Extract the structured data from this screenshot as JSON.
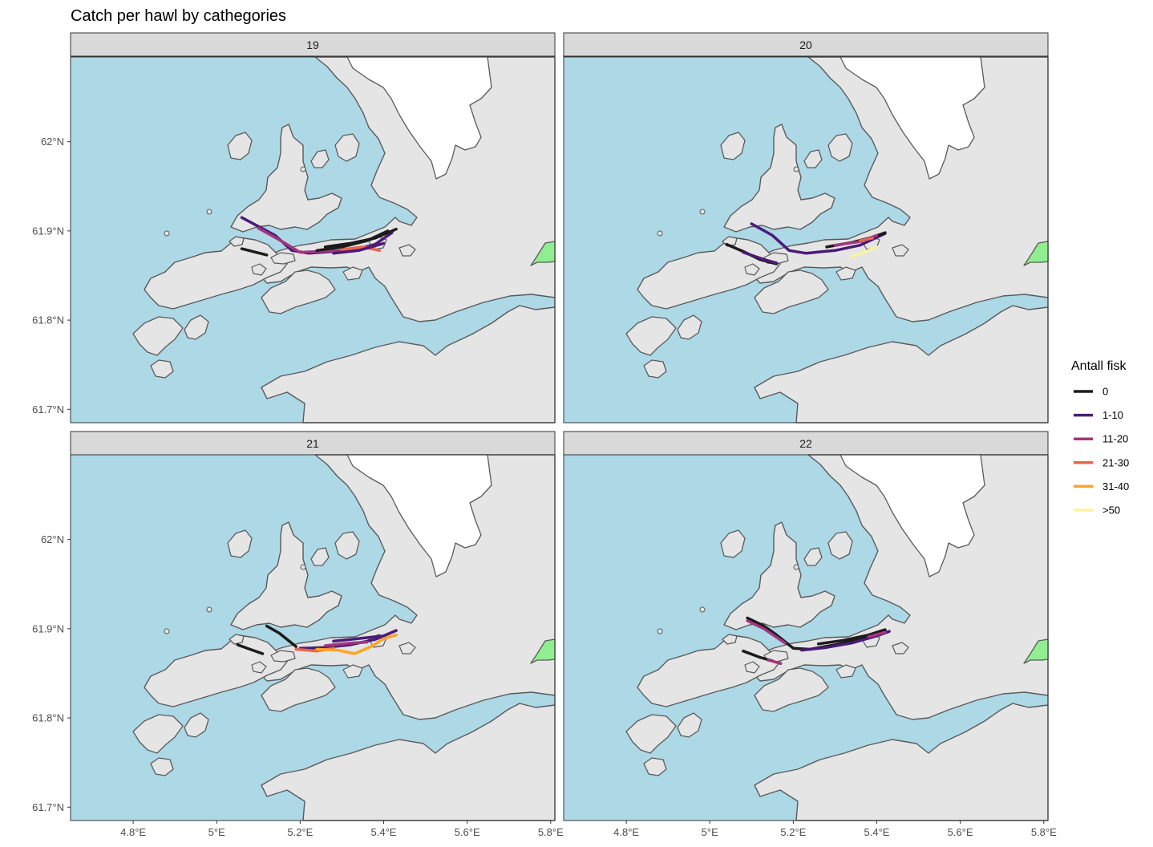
{
  "title": "Catch per hawl by cathegories",
  "colors": {
    "sea": "#add8e6",
    "land": "#e5e5e5",
    "land_outline": "#5a5a5a",
    "glacier": "#ffffff",
    "neighbor_region": "#90ee90",
    "strip_fill": "#d9d9d9",
    "graticule": "#ebebeb"
  },
  "legend": {
    "title": "Antall fisk",
    "items": [
      {
        "label": "0",
        "color": "#1b1b1b"
      },
      {
        "label": "1-10",
        "color": "#4b1a78"
      },
      {
        "label": "11-20",
        "color": "#a3357e"
      },
      {
        "label": "21-30",
        "color": "#e8654f"
      },
      {
        "label": "31-40",
        "color": "#fca526"
      },
      {
        "label": ">50",
        "color": "#f8f59b"
      }
    ]
  },
  "chart_data": {
    "type": "faceted-map",
    "facets": [
      "19",
      "20",
      "21",
      "22"
    ],
    "x_axis": {
      "ticks": [
        4.8,
        5.0,
        5.2,
        5.4,
        5.6,
        5.8
      ],
      "tick_labels": [
        "4.8°E",
        "5°E",
        "5.2°E",
        "5.4°E",
        "5.6°E",
        "5.8°E"
      ],
      "range": [
        4.65,
        5.81
      ]
    },
    "y_axis": {
      "ticks": [
        61.7,
        61.8,
        61.9,
        62.0
      ],
      "tick_labels": [
        "61.7°N",
        "61.8°N",
        "61.9°N",
        "62°N"
      ],
      "range": [
        61.685,
        62.095
      ]
    },
    "tracks": {
      "19": [
        {
          "cat": "1-10",
          "pts": [
            [
              5.06,
              61.915
            ],
            [
              5.1,
              61.905
            ],
            [
              5.14,
              61.895
            ],
            [
              5.18,
              61.878
            ],
            [
              5.22,
              61.875
            ],
            [
              5.28,
              61.877
            ],
            [
              5.34,
              61.88
            ],
            [
              5.38,
              61.885
            ],
            [
              5.42,
              61.898
            ]
          ]
        },
        {
          "cat": "11-20",
          "pts": [
            [
              5.1,
              61.903
            ],
            [
              5.15,
              61.89
            ],
            [
              5.2,
              61.876
            ],
            [
              5.3,
              61.878
            ],
            [
              5.38,
              61.883
            ]
          ]
        },
        {
          "cat": "21-30",
          "pts": [
            [
              5.3,
              61.879
            ],
            [
              5.35,
              61.882
            ],
            [
              5.39,
              61.878
            ]
          ]
        },
        {
          "cat": "0",
          "pts": [
            [
              5.06,
              61.88
            ],
            [
              5.12,
              61.873
            ]
          ]
        },
        {
          "cat": "0",
          "pts": [
            [
              5.26,
              61.882
            ],
            [
              5.32,
              61.886
            ],
            [
              5.38,
              61.892
            ],
            [
              5.43,
              61.902
            ]
          ]
        },
        {
          "cat": "0",
          "pts": [
            [
              5.24,
              61.878
            ],
            [
              5.3,
              61.882
            ],
            [
              5.36,
              61.889
            ],
            [
              5.41,
              61.9
            ]
          ]
        },
        {
          "cat": "1-10",
          "pts": [
            [
              5.28,
              61.875
            ],
            [
              5.34,
              61.878
            ],
            [
              5.4,
              61.886
            ]
          ]
        }
      ],
      "20": [
        {
          "cat": "1-10",
          "pts": [
            [
              5.1,
              61.908
            ],
            [
              5.15,
              61.895
            ],
            [
              5.19,
              61.878
            ],
            [
              5.23,
              61.875
            ],
            [
              5.3,
              61.878
            ],
            [
              5.36,
              61.884
            ],
            [
              5.42,
              61.897
            ]
          ]
        },
        {
          "cat": "0",
          "pts": [
            [
              5.04,
              61.885
            ],
            [
              5.08,
              61.877
            ],
            [
              5.12,
              61.868
            ],
            [
              5.16,
              61.863
            ]
          ]
        },
        {
          "cat": "1-10",
          "pts": [
            [
              5.08,
              61.876
            ],
            [
              5.13,
              61.868
            ],
            [
              5.16,
              61.864
            ]
          ]
        },
        {
          "cat": "0",
          "pts": [
            [
              5.28,
              61.882
            ],
            [
              5.34,
              61.887
            ],
            [
              5.39,
              61.893
            ],
            [
              5.42,
              61.898
            ]
          ]
        },
        {
          "cat": "11-20",
          "pts": [
            [
              5.3,
              61.884
            ],
            [
              5.36,
              61.888
            ],
            [
              5.4,
              61.895
            ]
          ]
        },
        {
          "cat": ">50",
          "pts": [
            [
              5.34,
              61.871
            ],
            [
              5.37,
              61.876
            ],
            [
              5.4,
              61.882
            ]
          ]
        },
        {
          "cat": "21-30",
          "pts": [
            [
              5.36,
              61.889
            ],
            [
              5.39,
              61.892
            ]
          ]
        }
      ],
      "21": [
        {
          "cat": "0",
          "pts": [
            [
              5.12,
              61.903
            ],
            [
              5.15,
              61.895
            ],
            [
              5.19,
              61.88
            ]
          ]
        },
        {
          "cat": "0",
          "pts": [
            [
              5.05,
              61.882
            ],
            [
              5.08,
              61.877
            ],
            [
              5.11,
              61.872
            ]
          ]
        },
        {
          "cat": "1-10",
          "pts": [
            [
              5.2,
              61.878
            ],
            [
              5.26,
              61.879
            ],
            [
              5.32,
              61.882
            ],
            [
              5.38,
              61.888
            ],
            [
              5.43,
              61.898
            ]
          ]
        },
        {
          "cat": "21-30",
          "pts": [
            [
              5.19,
              61.877
            ],
            [
              5.24,
              61.875
            ],
            [
              5.28,
              61.878
            ]
          ]
        },
        {
          "cat": "31-40",
          "pts": [
            [
              5.24,
              61.877
            ],
            [
              5.29,
              61.876
            ],
            [
              5.33,
              61.872
            ],
            [
              5.37,
              61.88
            ],
            [
              5.4,
              61.889
            ],
            [
              5.43,
              61.893
            ]
          ]
        },
        {
          "cat": "11-20",
          "pts": [
            [
              5.26,
              61.881
            ],
            [
              5.32,
              61.884
            ],
            [
              5.36,
              61.885
            ]
          ]
        },
        {
          "cat": "1-10",
          "pts": [
            [
              5.28,
              61.886
            ],
            [
              5.34,
              61.889
            ],
            [
              5.4,
              61.892
            ]
          ]
        }
      ],
      "22": [
        {
          "cat": "0",
          "pts": [
            [
              5.09,
              61.912
            ],
            [
              5.13,
              61.903
            ],
            [
              5.16,
              61.893
            ],
            [
              5.2,
              61.878
            ],
            [
              5.24,
              61.877
            ],
            [
              5.3,
              61.882
            ],
            [
              5.36,
              61.888
            ],
            [
              5.42,
              61.898
            ]
          ]
        },
        {
          "cat": "11-20",
          "pts": [
            [
              5.09,
              61.909
            ],
            [
              5.13,
              61.9
            ],
            [
              5.18,
              61.884
            ]
          ]
        },
        {
          "cat": "0",
          "pts": [
            [
              5.08,
              61.875
            ],
            [
              5.12,
              61.868
            ],
            [
              5.15,
              61.864
            ]
          ]
        },
        {
          "cat": "11-20",
          "pts": [
            [
              5.14,
              61.865
            ],
            [
              5.17,
              61.861
            ]
          ]
        },
        {
          "cat": "1-10",
          "pts": [
            [
              5.22,
              61.876
            ],
            [
              5.28,
              61.879
            ],
            [
              5.34,
              61.884
            ],
            [
              5.4,
              61.892
            ],
            [
              5.43,
              61.897
            ]
          ]
        },
        {
          "cat": "0",
          "pts": [
            [
              5.26,
              61.883
            ],
            [
              5.32,
              61.887
            ],
            [
              5.38,
              61.893
            ],
            [
              5.42,
              61.899
            ]
          ]
        },
        {
          "cat": "11-20",
          "pts": [
            [
              5.38,
              61.891
            ],
            [
              5.42,
              61.896
            ]
          ]
        }
      ]
    }
  }
}
